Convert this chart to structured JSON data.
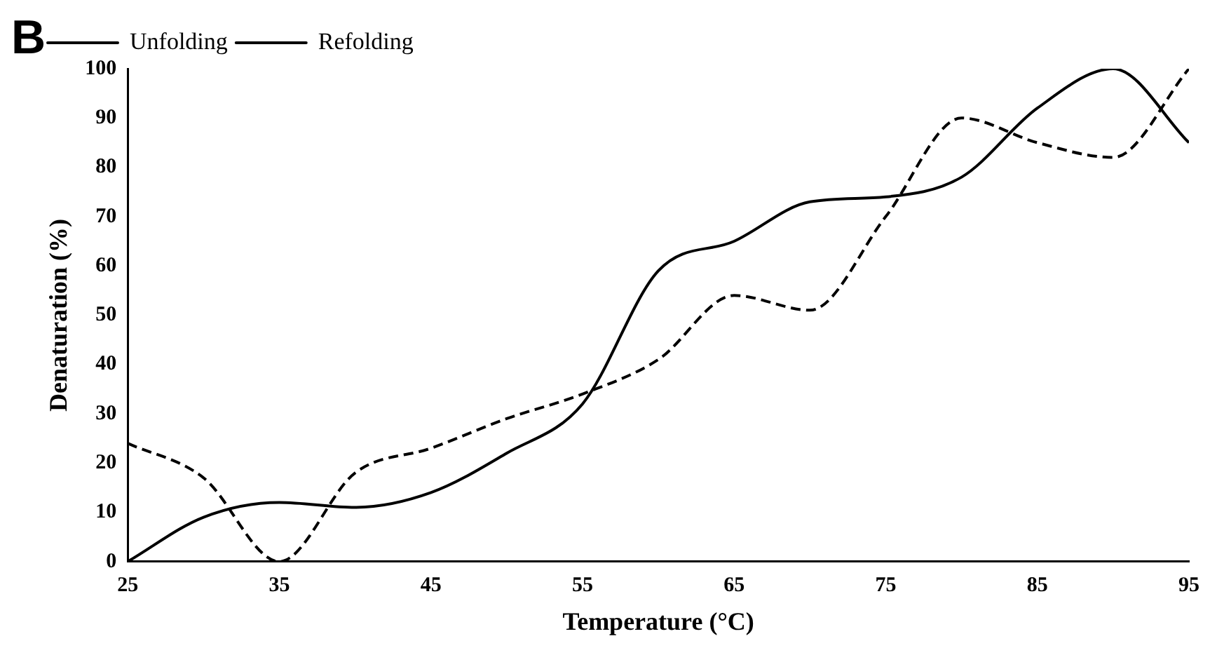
{
  "chart_data": {
    "type": "line",
    "xlabel": "Temperature (°C)",
    "ylabel": "Denaturation (%)",
    "annotations": [
      "B"
    ],
    "x": [
      25,
      30,
      35,
      40,
      45,
      50,
      55,
      60,
      65,
      70,
      75,
      80,
      85,
      90,
      95
    ],
    "series": [
      {
        "name": "Unfolding",
        "color": "#000000",
        "line_style": "solid",
        "values": [
          0,
          9,
          12,
          11,
          14,
          22,
          32,
          59,
          65,
          73,
          74,
          78,
          92,
          100,
          85
        ]
      },
      {
        "name": "Refolding",
        "color": "#000000",
        "line_style": "dashed",
        "values": [
          24,
          17,
          0,
          18,
          23,
          29,
          34,
          41,
          54,
          51,
          70,
          90,
          85,
          82,
          100
        ]
      }
    ],
    "xlim": [
      25,
      95
    ],
    "xticks": [
      25,
      35,
      45,
      55,
      65,
      75,
      85,
      95
    ],
    "ylim": [
      0,
      100
    ],
    "yticks": [
      0,
      10,
      20,
      30,
      40,
      50,
      60,
      70,
      80,
      90,
      100
    ],
    "grid": false,
    "legend": "top left",
    "marker": "none"
  }
}
